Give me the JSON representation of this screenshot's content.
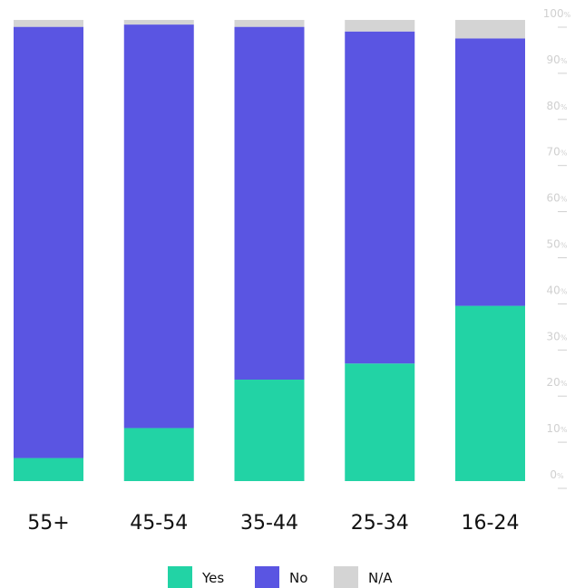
{
  "chart_data": {
    "type": "bar",
    "stacked": true,
    "categories": [
      "55+",
      "45-54",
      "35-44",
      "25-34",
      "16-24"
    ],
    "series": [
      {
        "name": "Yes",
        "color": "#22d3a5",
        "values": [
          5,
          11.5,
          22,
          25.5,
          38
        ]
      },
      {
        "name": "No",
        "color": "#5a55e2",
        "values": [
          93.5,
          87.5,
          76.5,
          72,
          58
        ]
      },
      {
        "name": "N/A",
        "color": "#d4d4d4",
        "values": [
          1.5,
          1,
          1.5,
          2.5,
          4
        ]
      }
    ],
    "ylim": [
      0,
      100
    ],
    "y_ticks": [
      {
        "value": 0,
        "num": "0",
        "unit": "%"
      },
      {
        "value": 10,
        "num": "10",
        "unit": "%"
      },
      {
        "value": 20,
        "num": "20",
        "unit": "%"
      },
      {
        "value": 30,
        "num": "30",
        "unit": "%"
      },
      {
        "value": 40,
        "num": "40",
        "unit": "%"
      },
      {
        "value": 50,
        "num": "50",
        "unit": "%"
      },
      {
        "value": 60,
        "num": "60",
        "unit": "%"
      },
      {
        "value": 70,
        "num": "70",
        "unit": "%"
      },
      {
        "value": 80,
        "num": "80",
        "unit": "%"
      },
      {
        "value": 90,
        "num": "90",
        "unit": "%"
      },
      {
        "value": 100,
        "num": "100",
        "unit": "%"
      }
    ],
    "y_axis_side": "right",
    "grid": false,
    "legend_position": "bottom-center"
  }
}
